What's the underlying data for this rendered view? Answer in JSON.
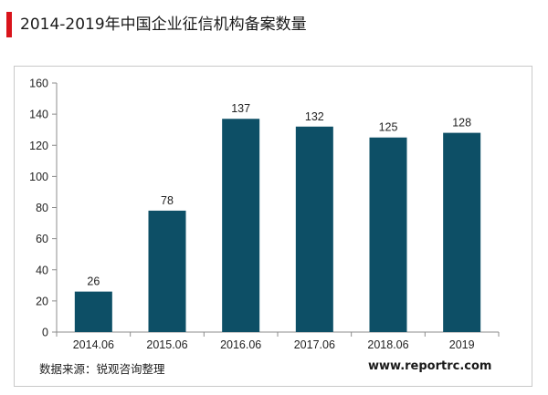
{
  "title": "2014-2019年中国企业征信机构备案数量",
  "source": "数据来源：锐观咨询整理",
  "website": "www.reportrc.com",
  "colors": {
    "bar": "#0d4f66",
    "accent": "#d9141b",
    "axis": "#8c8c8c"
  },
  "chart_data": {
    "type": "bar",
    "title": "",
    "xlabel": "",
    "ylabel": "",
    "categories": [
      "2014.06",
      "2015.06",
      "2016.06",
      "2017.06",
      "2018.06",
      "2019"
    ],
    "values": [
      26,
      78,
      137,
      132,
      125,
      128
    ],
    "ylim": [
      0,
      160
    ],
    "yticks": [
      0,
      20,
      40,
      60,
      80,
      100,
      120,
      140,
      160
    ],
    "grid": false,
    "legend": "none"
  }
}
